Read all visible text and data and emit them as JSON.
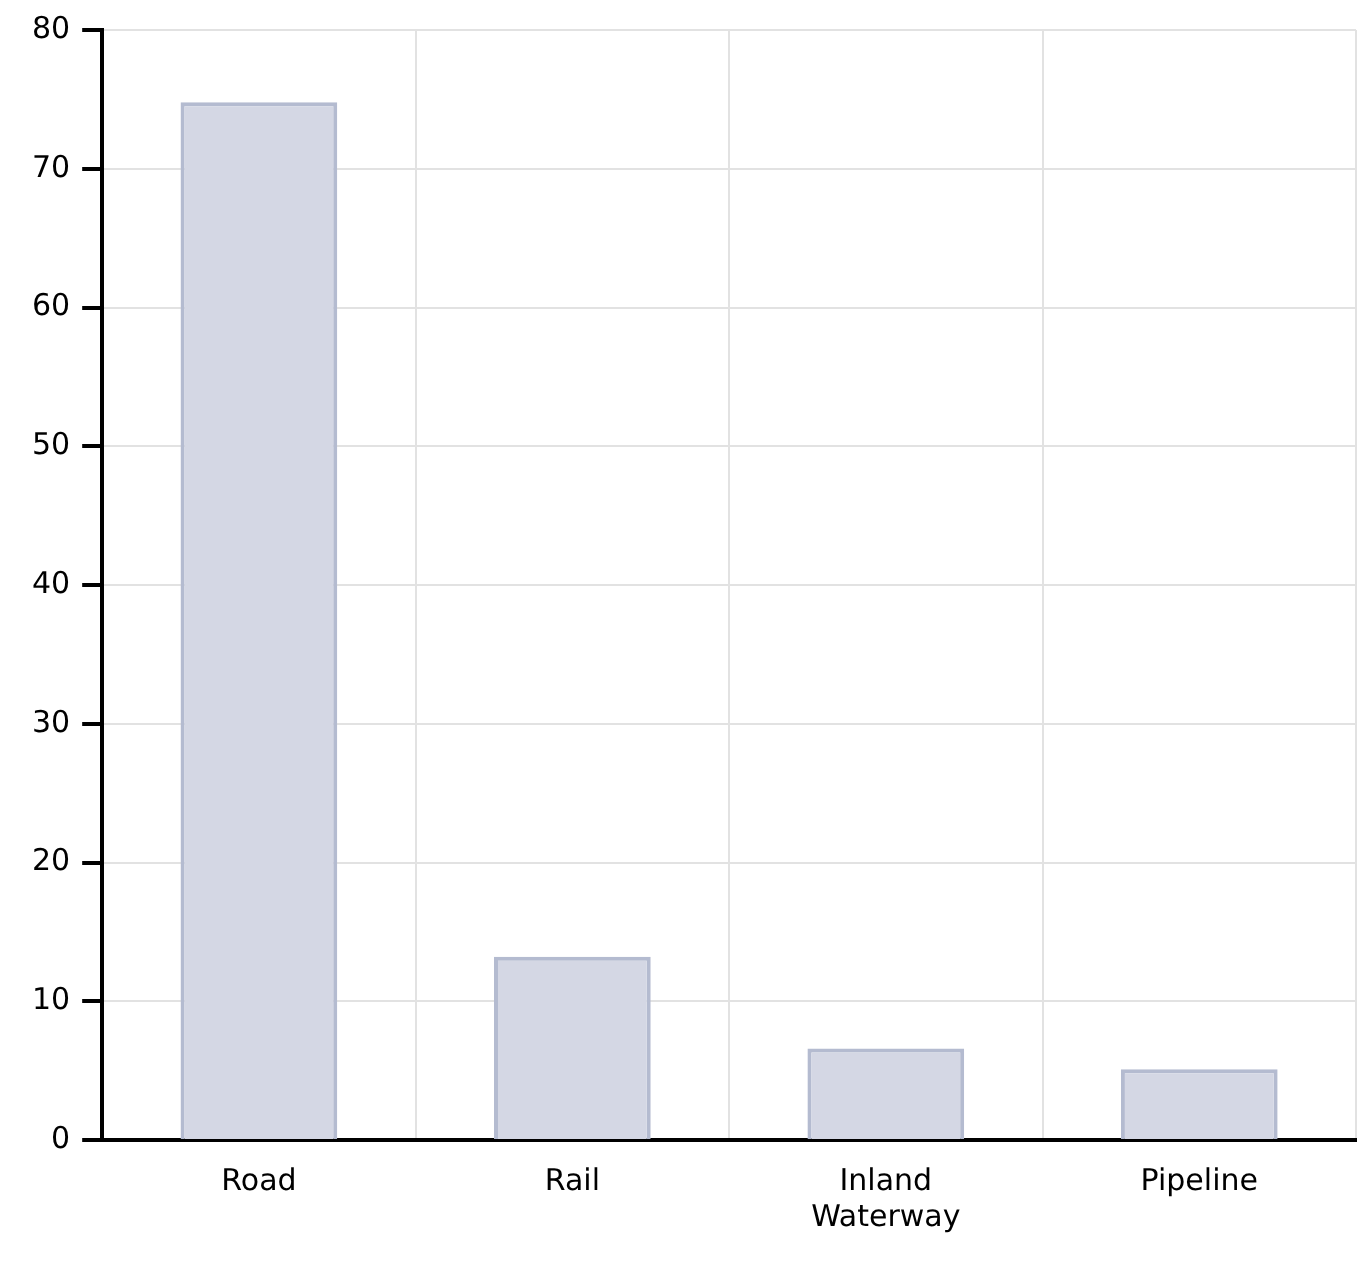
{
  "chart_data": {
    "type": "bar",
    "categories": [
      "Road",
      "Rail",
      "Inland Waterway",
      "Pipeline"
    ],
    "values": [
      74.8,
      13.2,
      6.6,
      5.1
    ],
    "color": "#d4d7e4",
    "ylim": [
      0,
      80
    ],
    "yticks": [
      0,
      10,
      20,
      30,
      40,
      50,
      60,
      70,
      80
    ],
    "grid": true
  }
}
